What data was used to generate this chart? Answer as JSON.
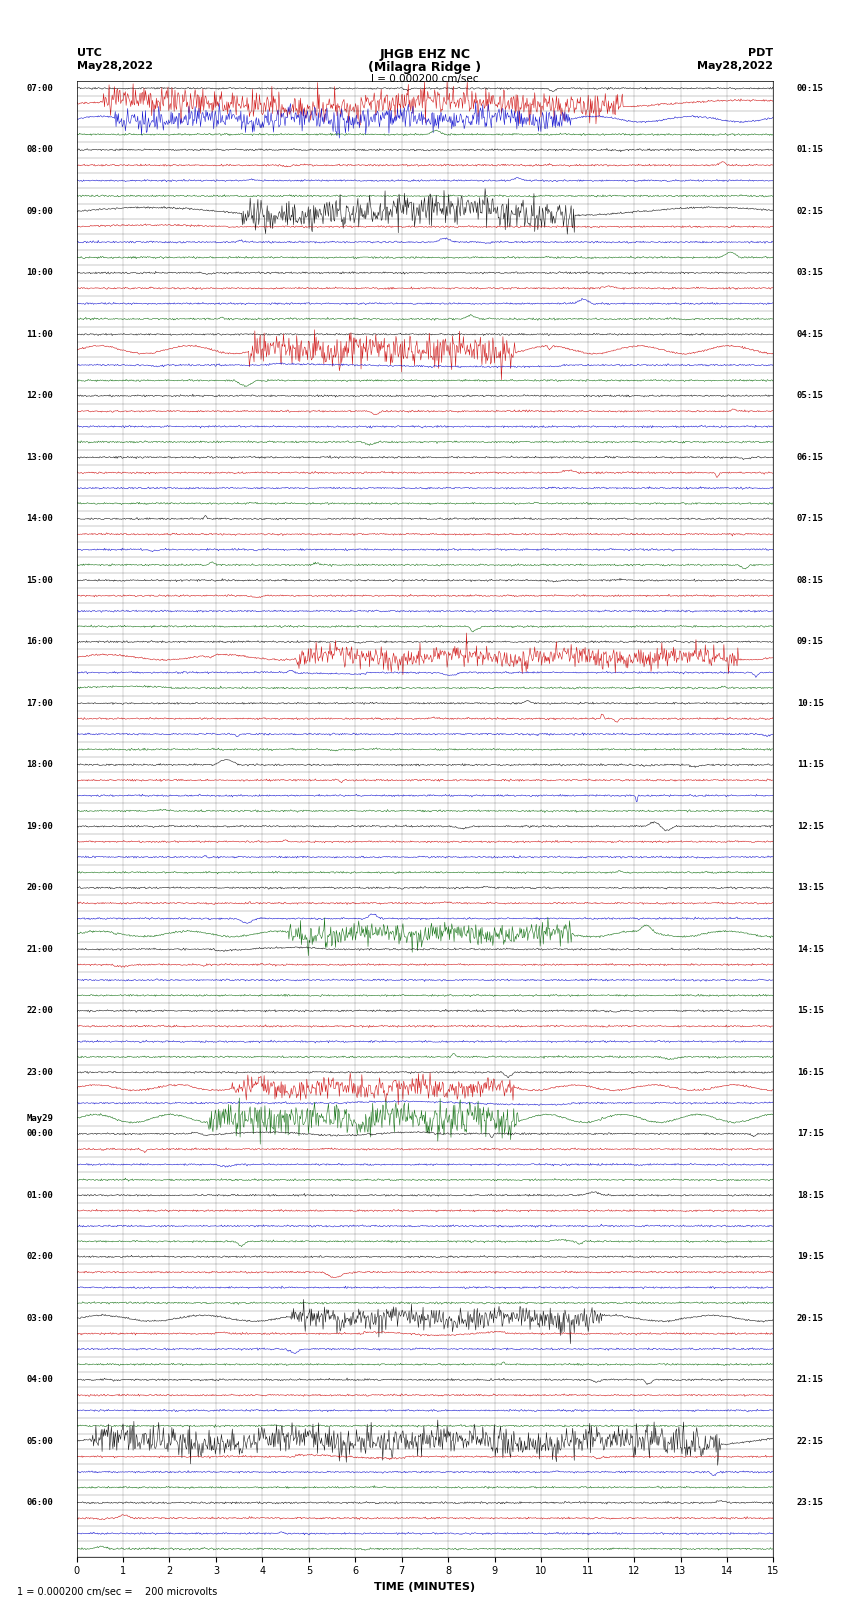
{
  "title_line1": "JHGB EHZ NC",
  "title_line2": "(Milagra Ridge )",
  "title_line3": "I = 0.000200 cm/sec",
  "left_label": "UTC",
  "left_date": "May28,2022",
  "right_label": "PDT",
  "right_date": "May28,2022",
  "xlabel": "TIME (MINUTES)",
  "bottom_note": "1 = 0.000200 cm/sec =    200 microvolts",
  "xmin": 0,
  "xmax": 15,
  "background_color": "#ffffff",
  "trace_colors": [
    "#000000",
    "#cc0000",
    "#0000cc",
    "#006600"
  ],
  "n_rows": 96,
  "noise_level": 0.08,
  "big_event_rows": [
    1,
    2,
    8,
    17,
    37,
    55,
    65,
    67,
    80,
    88
  ],
  "event_rows": [
    9,
    18,
    38,
    39,
    56,
    66,
    68,
    81,
    89
  ],
  "utc_label_times": [
    [
      "07:00",
      0
    ],
    [
      "08:00",
      4
    ],
    [
      "09:00",
      8
    ],
    [
      "10:00",
      12
    ],
    [
      "11:00",
      16
    ],
    [
      "12:00",
      20
    ],
    [
      "13:00",
      24
    ],
    [
      "14:00",
      28
    ],
    [
      "15:00",
      32
    ],
    [
      "16:00",
      36
    ],
    [
      "17:00",
      40
    ],
    [
      "18:00",
      44
    ],
    [
      "19:00",
      48
    ],
    [
      "20:00",
      52
    ],
    [
      "21:00",
      56
    ],
    [
      "22:00",
      60
    ],
    [
      "23:00",
      64
    ],
    [
      "May29",
      67
    ],
    [
      "00:00",
      68
    ],
    [
      "01:00",
      72
    ],
    [
      "02:00",
      76
    ],
    [
      "03:00",
      80
    ],
    [
      "04:00",
      84
    ],
    [
      "05:00",
      88
    ],
    [
      "06:00",
      92
    ]
  ],
  "pdt_label_times": [
    [
      "00:15",
      0
    ],
    [
      "01:15",
      4
    ],
    [
      "02:15",
      8
    ],
    [
      "03:15",
      12
    ],
    [
      "04:15",
      16
    ],
    [
      "05:15",
      20
    ],
    [
      "06:15",
      24
    ],
    [
      "07:15",
      28
    ],
    [
      "08:15",
      32
    ],
    [
      "09:15",
      36
    ],
    [
      "10:15",
      40
    ],
    [
      "11:15",
      44
    ],
    [
      "12:15",
      48
    ],
    [
      "13:15",
      52
    ],
    [
      "14:15",
      56
    ],
    [
      "15:15",
      60
    ],
    [
      "16:15",
      64
    ],
    [
      "17:15",
      68
    ],
    [
      "18:15",
      72
    ],
    [
      "19:15",
      76
    ],
    [
      "20:15",
      80
    ],
    [
      "21:15",
      84
    ],
    [
      "22:15",
      88
    ],
    [
      "23:15",
      92
    ]
  ]
}
